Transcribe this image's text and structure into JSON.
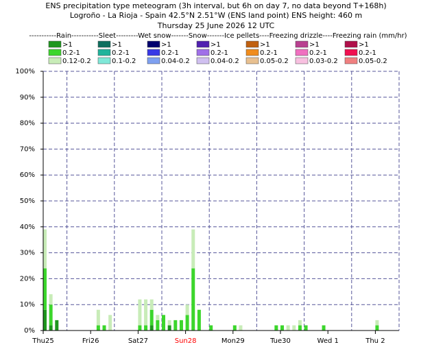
{
  "chart_data": {
    "type": "stacked-bar",
    "title": "ENS precipitation type meteogram (3h interval, but 6h on day 7, no data beyond T+168h)",
    "subtitle": "Logroño - La Rioja - Spain 42.5°N 2.51°W (ENS land point) ENS height: 460 m",
    "date_line": "Thursday 25 June 2026 12 UTC",
    "legend_title": "-----------Rain-----------Sleet---------Wet snow-------Snow-------Ice pellets----Freezing drizzle----Freezing rain (mm/hr)",
    "x": [
      0,
      3,
      6,
      27,
      30,
      33,
      48,
      51,
      54,
      57,
      60,
      63,
      66,
      69,
      72,
      75,
      78,
      84,
      96,
      99,
      117,
      120,
      123,
      126,
      129,
      132,
      141,
      168
    ],
    "series": [
      {
        "name": ">1",
        "color": "#1e961e",
        "values": [
          8,
          2,
          4,
          0,
          0,
          0,
          0,
          0,
          2,
          0,
          0,
          2,
          0,
          0,
          0,
          0,
          0,
          0,
          0,
          0,
          0,
          0,
          0,
          0,
          0,
          0,
          0,
          0
        ]
      },
      {
        "name": "0.2-1",
        "color": "#3cd62c",
        "values": [
          16,
          8,
          0,
          2,
          2,
          0,
          2,
          2,
          6,
          4,
          6,
          0,
          4,
          4,
          6,
          24,
          8,
          2,
          2,
          0,
          2,
          2,
          0,
          0,
          2,
          2,
          2,
          2
        ]
      },
      {
        "name": "0.12-0.2",
        "color": "#c8ecb8",
        "values": [
          15,
          4,
          0,
          6,
          0,
          6,
          10,
          10,
          4,
          2,
          0,
          2,
          0,
          0,
          4,
          15,
          0,
          0,
          0,
          2,
          0,
          0,
          2,
          2,
          2,
          0,
          0,
          2
        ]
      }
    ],
    "legend": [
      {
        "name": ">1",
        "color": "#0e6e5e"
      },
      {
        "name": "0.2-1",
        "color": "#20b49c"
      },
      {
        "name": "0.1-0.2",
        "color": "#80e8d8"
      },
      {
        "name": ">1",
        "color": "#00006e"
      },
      {
        "name": "0.2-1",
        "color": "#3838e6"
      },
      {
        "name": "0.04-0.2",
        "color": "#7ea0f0"
      },
      {
        "name": ">1",
        "color": "#5020b0"
      },
      {
        "name": "0.2-1",
        "color": "#a070e8"
      },
      {
        "name": "0.04-0.2",
        "color": "#d0c0f0"
      },
      {
        "name": ">1",
        "color": "#c06010"
      },
      {
        "name": "0.2-1",
        "color": "#f08c1c"
      },
      {
        "name": "0.05-0.2",
        "color": "#e8c090"
      },
      {
        "name": ">1",
        "color": "#b84090"
      },
      {
        "name": "0.2-1",
        "color": "#f070c0"
      },
      {
        "name": "0.03-0.2",
        "color": "#f8c0e0"
      },
      {
        "name": ">1",
        "color": "#b0104a"
      },
      {
        "name": "0.2-1",
        "color": "#f01050"
      },
      {
        "name": "0.05-0.2",
        "color": "#f08080"
      }
    ],
    "xlim": [
      0,
      180
    ],
    "xticks": [
      {
        "value": 0,
        "label": "Thu25"
      },
      {
        "value": 24,
        "label": "Fri26"
      },
      {
        "value": 48,
        "label": "Sat27"
      },
      {
        "value": 72,
        "label": "Sun28",
        "color": "#ff0000"
      },
      {
        "value": 96,
        "label": "Mon29"
      },
      {
        "value": 120,
        "label": "Tue30"
      },
      {
        "value": 144,
        "label": "Wed 1"
      },
      {
        "value": 168,
        "label": "Thu 2"
      }
    ],
    "xgrid": [
      12,
      36,
      60,
      84,
      108,
      132,
      156
    ],
    "ylim": [
      0,
      100
    ],
    "yticks": [
      {
        "value": 0,
        "label": "0%"
      },
      {
        "value": 10,
        "label": "10%"
      },
      {
        "value": 20,
        "label": "20%"
      },
      {
        "value": 30,
        "label": "30%"
      },
      {
        "value": 40,
        "label": "40%"
      },
      {
        "value": 50,
        "label": "50%"
      },
      {
        "value": 60,
        "label": "60%"
      },
      {
        "value": 70,
        "label": "70%"
      },
      {
        "value": 80,
        "label": "80%"
      },
      {
        "value": 90,
        "label": "90%"
      },
      {
        "value": 100,
        "label": "100%"
      }
    ],
    "grid": true
  }
}
